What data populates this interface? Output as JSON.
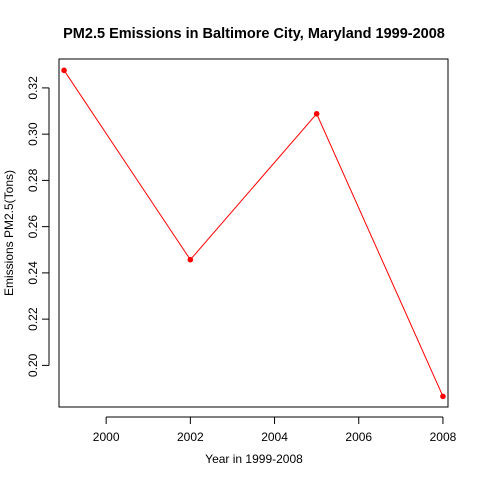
{
  "chart_data": {
    "type": "line",
    "title": "PM2.5 Emissions in Baltimore City, Maryland 1999-2008",
    "xlabel": "Year in 1999-2008",
    "ylabel": "Emissions PM2.5(Tons)",
    "x": [
      1999,
      2002,
      2005,
      2008
    ],
    "series": [
      {
        "values": [
          0.3276,
          0.2457,
          0.3088,
          0.1866
        ]
      }
    ],
    "xticks": [
      2000,
      2002,
      2004,
      2006,
      2008
    ],
    "xtick_labels": [
      "2000",
      "2002",
      "2004",
      "2006",
      "2008"
    ],
    "yticks": [
      0.2,
      0.22,
      0.24,
      0.26,
      0.28,
      0.3,
      0.32
    ],
    "ytick_labels": [
      "0.20",
      "0.22",
      "0.24",
      "0.26",
      "0.28",
      "0.30",
      "0.32"
    ],
    "xlim": [
      1998.88,
      2008.12
    ],
    "ylim": [
      0.182,
      0.3325
    ],
    "line_color": "#ff0000",
    "marker_color": "#ff0000",
    "grid": false
  }
}
